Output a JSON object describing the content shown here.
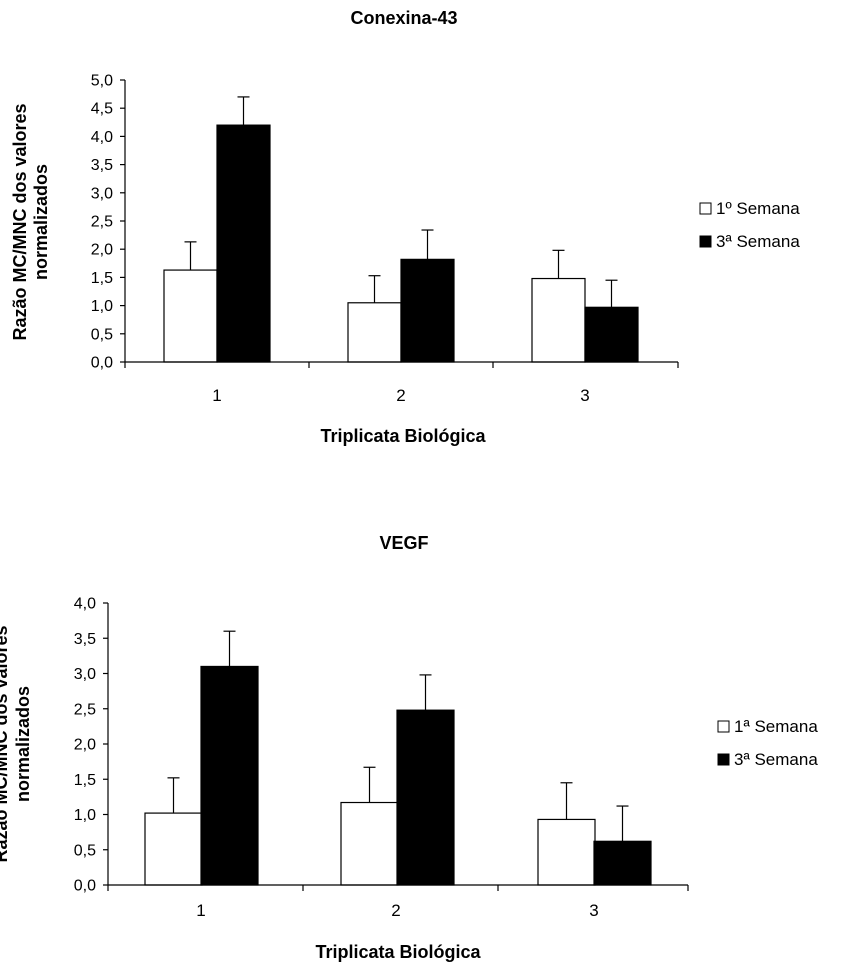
{
  "chart_data": [
    {
      "type": "bar",
      "title": "Conexina-43",
      "xlabel": "Triplicata Biológica",
      "ylabel": [
        "Razão MC/MNC dos valores",
        "normalizados"
      ],
      "ylim": [
        0,
        5
      ],
      "yticks": [
        "0,0",
        "0,5",
        "1,0",
        "1,5",
        "2,0",
        "2,5",
        "3,0",
        "3,5",
        "4,0",
        "4,5",
        "5,0"
      ],
      "categories": [
        "1",
        "2",
        "3"
      ],
      "legend_position": "right",
      "series": [
        {
          "name": "1º Semana",
          "color": "#ffffff",
          "values": [
            1.63,
            1.05,
            1.48
          ],
          "errors": [
            0.5,
            0.48,
            0.5
          ]
        },
        {
          "name": "3ª Semana",
          "color": "#000000",
          "values": [
            4.2,
            1.82,
            0.97
          ],
          "errors": [
            0.5,
            0.52,
            0.48
          ]
        }
      ]
    },
    {
      "type": "bar",
      "title": "VEGF",
      "xlabel": "Triplicata Biológica",
      "ylabel": [
        "Razão MC/MNC dos valores",
        "normalizados"
      ],
      "ylim": [
        0,
        4
      ],
      "yticks": [
        "0,0",
        "0,5",
        "1,0",
        "1,5",
        "2,0",
        "2,5",
        "3,0",
        "3,5",
        "4,0"
      ],
      "categories": [
        "1",
        "2",
        "3"
      ],
      "legend_position": "right",
      "series": [
        {
          "name": "1ª Semana",
          "color": "#ffffff",
          "values": [
            1.02,
            1.17,
            0.93
          ],
          "errors": [
            0.5,
            0.5,
            0.52
          ]
        },
        {
          "name": "3ª Semana",
          "color": "#000000",
          "values": [
            3.1,
            2.48,
            0.62
          ],
          "errors": [
            0.5,
            0.5,
            0.5
          ]
        }
      ]
    }
  ]
}
